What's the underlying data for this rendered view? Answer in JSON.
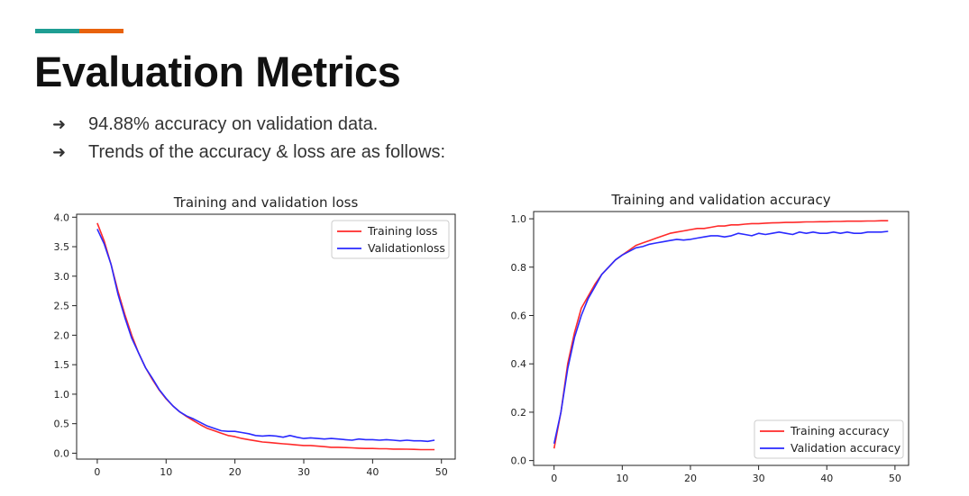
{
  "slide": {
    "title": "Evaluation Metrics",
    "accent_colors": [
      "#1f9e93",
      "#e8620c"
    ],
    "bullets": [
      {
        "icon": "arrow-right-icon",
        "text": "94.88% accuracy on validation data."
      },
      {
        "icon": "arrow-right-icon",
        "text": "Trends of the accuracy & loss are as follows:"
      }
    ]
  },
  "chart_data": [
    {
      "type": "line",
      "title": "Training and validation loss",
      "xlabel": "",
      "ylabel": "",
      "xlim": [
        -3,
        52
      ],
      "ylim": [
        -0.1,
        4.05
      ],
      "xticks": [
        0,
        10,
        20,
        30,
        40,
        50
      ],
      "yticks": [
        0.0,
        0.5,
        1.0,
        1.5,
        2.0,
        2.5,
        3.0,
        3.5,
        4.0
      ],
      "ytick_labels": [
        "0.0",
        "0.5",
        "1.0",
        "1.5",
        "2.0",
        "2.5",
        "3.0",
        "3.5",
        "4.0"
      ],
      "grid": false,
      "legend": "top-right",
      "x": [
        0,
        1,
        2,
        3,
        4,
        5,
        6,
        7,
        8,
        9,
        10,
        11,
        12,
        13,
        14,
        15,
        16,
        17,
        18,
        19,
        20,
        21,
        22,
        23,
        24,
        25,
        26,
        27,
        28,
        29,
        30,
        31,
        32,
        33,
        34,
        35,
        36,
        37,
        38,
        39,
        40,
        41,
        42,
        43,
        44,
        45,
        46,
        47,
        48,
        49
      ],
      "series": [
        {
          "name": "Training loss",
          "color": "#ff2a2a",
          "values": [
            3.9,
            3.6,
            3.2,
            2.75,
            2.35,
            2.0,
            1.7,
            1.45,
            1.25,
            1.07,
            0.92,
            0.8,
            0.7,
            0.62,
            0.55,
            0.48,
            0.42,
            0.38,
            0.34,
            0.3,
            0.28,
            0.25,
            0.23,
            0.21,
            0.19,
            0.18,
            0.17,
            0.16,
            0.15,
            0.14,
            0.13,
            0.13,
            0.12,
            0.11,
            0.1,
            0.1,
            0.095,
            0.09,
            0.085,
            0.08,
            0.08,
            0.075,
            0.075,
            0.07,
            0.07,
            0.068,
            0.065,
            0.06,
            0.06,
            0.06
          ]
        },
        {
          "name": "Validationloss",
          "color": "#2a2aff",
          "values": [
            3.8,
            3.55,
            3.2,
            2.7,
            2.3,
            1.95,
            1.7,
            1.45,
            1.27,
            1.08,
            0.93,
            0.8,
            0.7,
            0.63,
            0.58,
            0.52,
            0.46,
            0.42,
            0.38,
            0.37,
            0.37,
            0.35,
            0.33,
            0.3,
            0.29,
            0.3,
            0.29,
            0.27,
            0.3,
            0.27,
            0.25,
            0.26,
            0.25,
            0.24,
            0.25,
            0.24,
            0.23,
            0.22,
            0.24,
            0.23,
            0.23,
            0.22,
            0.23,
            0.22,
            0.21,
            0.22,
            0.21,
            0.21,
            0.2,
            0.22
          ]
        }
      ]
    },
    {
      "type": "line",
      "title": "Training and validation accuracy",
      "xlabel": "",
      "ylabel": "",
      "xlim": [
        -3,
        52
      ],
      "ylim": [
        -0.02,
        1.03
      ],
      "xticks": [
        0,
        10,
        20,
        30,
        40,
        50
      ],
      "yticks": [
        0.0,
        0.2,
        0.4,
        0.6,
        0.8,
        1.0
      ],
      "ytick_labels": [
        "0.0",
        "0.2",
        "0.4",
        "0.6",
        "0.8",
        "1.0"
      ],
      "grid": false,
      "legend": "bottom-right",
      "x": [
        0,
        1,
        2,
        3,
        4,
        5,
        6,
        7,
        8,
        9,
        10,
        11,
        12,
        13,
        14,
        15,
        16,
        17,
        18,
        19,
        20,
        21,
        22,
        23,
        24,
        25,
        26,
        27,
        28,
        29,
        30,
        31,
        32,
        33,
        34,
        35,
        36,
        37,
        38,
        39,
        40,
        41,
        42,
        43,
        44,
        45,
        46,
        47,
        48,
        49
      ],
      "series": [
        {
          "name": "Training accuracy",
          "color": "#ff2a2a",
          "values": [
            0.05,
            0.2,
            0.4,
            0.53,
            0.63,
            0.68,
            0.73,
            0.77,
            0.8,
            0.83,
            0.85,
            0.87,
            0.89,
            0.9,
            0.91,
            0.92,
            0.93,
            0.94,
            0.945,
            0.95,
            0.955,
            0.96,
            0.96,
            0.965,
            0.97,
            0.97,
            0.975,
            0.975,
            0.978,
            0.98,
            0.98,
            0.982,
            0.983,
            0.984,
            0.985,
            0.985,
            0.986,
            0.987,
            0.987,
            0.988,
            0.988,
            0.989,
            0.989,
            0.99,
            0.99,
            0.99,
            0.991,
            0.991,
            0.992,
            0.992
          ]
        },
        {
          "name": "Validation accuracy",
          "color": "#2a2aff",
          "values": [
            0.07,
            0.2,
            0.38,
            0.51,
            0.6,
            0.67,
            0.72,
            0.77,
            0.8,
            0.83,
            0.85,
            0.865,
            0.88,
            0.885,
            0.895,
            0.9,
            0.905,
            0.91,
            0.915,
            0.912,
            0.915,
            0.92,
            0.925,
            0.93,
            0.93,
            0.925,
            0.93,
            0.94,
            0.935,
            0.93,
            0.94,
            0.935,
            0.94,
            0.945,
            0.94,
            0.935,
            0.945,
            0.94,
            0.945,
            0.94,
            0.94,
            0.945,
            0.94,
            0.945,
            0.94,
            0.94,
            0.945,
            0.945,
            0.945,
            0.948
          ]
        }
      ]
    }
  ]
}
